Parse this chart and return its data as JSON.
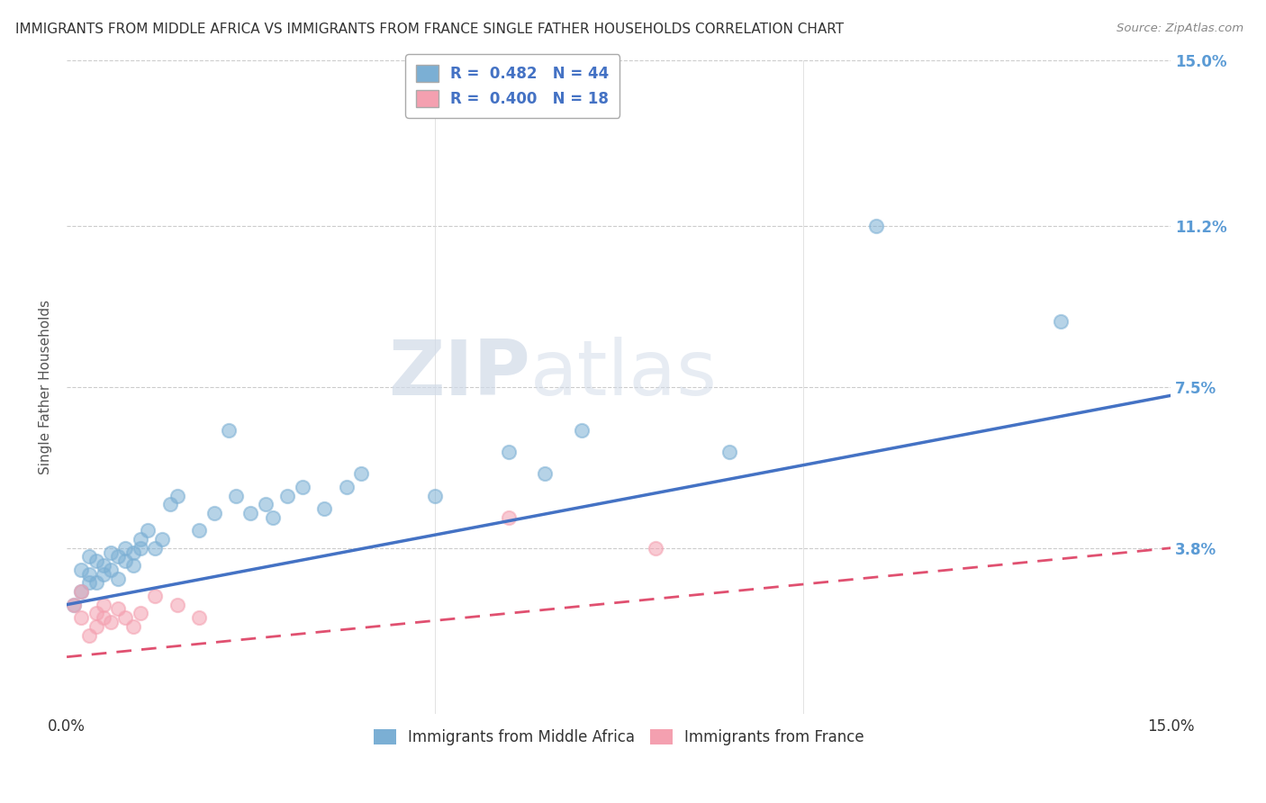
{
  "title": "IMMIGRANTS FROM MIDDLE AFRICA VS IMMIGRANTS FROM FRANCE SINGLE FATHER HOUSEHOLDS CORRELATION CHART",
  "source": "Source: ZipAtlas.com",
  "ylabel": "Single Father Households",
  "xlim": [
    0.0,
    0.15
  ],
  "ylim": [
    0.0,
    0.15
  ],
  "ytick_labels": [
    "",
    "3.8%",
    "7.5%",
    "11.2%",
    "15.0%"
  ],
  "ytick_values": [
    0.0,
    0.038,
    0.075,
    0.112,
    0.15
  ],
  "bottom_legend": [
    "Immigrants from Middle Africa",
    "Immigrants from France"
  ],
  "series1_color": "#7bafd4",
  "series2_color": "#f4a0b0",
  "series1_R": 0.482,
  "series1_N": 44,
  "series2_R": 0.4,
  "series2_N": 18,
  "series1_line_color": "#4472c4",
  "series2_line_color": "#e05070",
  "series1_points_x": [
    0.001,
    0.002,
    0.002,
    0.003,
    0.003,
    0.003,
    0.004,
    0.004,
    0.005,
    0.005,
    0.006,
    0.006,
    0.007,
    0.007,
    0.008,
    0.008,
    0.009,
    0.009,
    0.01,
    0.01,
    0.011,
    0.012,
    0.013,
    0.014,
    0.015,
    0.018,
    0.02,
    0.022,
    0.023,
    0.025,
    0.027,
    0.028,
    0.03,
    0.032,
    0.035,
    0.038,
    0.04,
    0.05,
    0.06,
    0.065,
    0.07,
    0.09,
    0.11,
    0.135
  ],
  "series1_points_y": [
    0.025,
    0.028,
    0.033,
    0.03,
    0.032,
    0.036,
    0.03,
    0.035,
    0.032,
    0.034,
    0.033,
    0.037,
    0.031,
    0.036,
    0.035,
    0.038,
    0.034,
    0.037,
    0.038,
    0.04,
    0.042,
    0.038,
    0.04,
    0.048,
    0.05,
    0.042,
    0.046,
    0.065,
    0.05,
    0.046,
    0.048,
    0.045,
    0.05,
    0.052,
    0.047,
    0.052,
    0.055,
    0.05,
    0.06,
    0.055,
    0.065,
    0.06,
    0.112,
    0.09
  ],
  "series2_points_x": [
    0.001,
    0.002,
    0.002,
    0.003,
    0.004,
    0.004,
    0.005,
    0.005,
    0.006,
    0.007,
    0.008,
    0.009,
    0.01,
    0.012,
    0.015,
    0.018,
    0.06,
    0.08
  ],
  "series2_points_y": [
    0.025,
    0.022,
    0.028,
    0.018,
    0.02,
    0.023,
    0.022,
    0.025,
    0.021,
    0.024,
    0.022,
    0.02,
    0.023,
    0.027,
    0.025,
    0.022,
    0.045,
    0.038
  ],
  "series1_line_x0": 0.0,
  "series1_line_y0": 0.025,
  "series1_line_x1": 0.15,
  "series1_line_y1": 0.073,
  "series2_line_x0": 0.0,
  "series2_line_y0": 0.013,
  "series2_line_x1": 0.15,
  "series2_line_y1": 0.038
}
